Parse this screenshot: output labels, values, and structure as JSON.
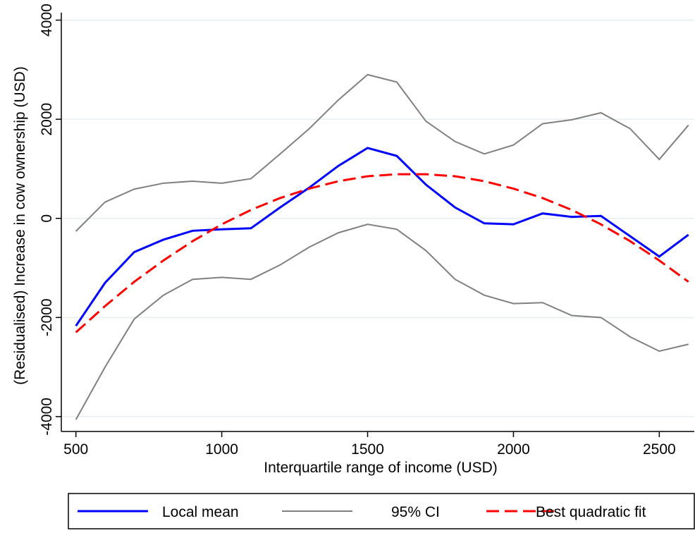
{
  "chart_data": {
    "type": "line",
    "x_label": "Interquartile range of income (USD)",
    "y_label": "(Residualised) Increase in cow ownership (USD)",
    "x": [
      500,
      600,
      700,
      800,
      900,
      1000,
      1100,
      1200,
      1300,
      1400,
      1500,
      1600,
      1700,
      1800,
      1900,
      2000,
      2100,
      2200,
      2300,
      2400,
      2500,
      2600
    ],
    "series": [
      {
        "name": "Local mean",
        "color": "#0000ff",
        "style": "solid",
        "values": [
          -2170,
          -1300,
          -680,
          -430,
          -250,
          -220,
          -200,
          220,
          620,
          1060,
          1420,
          1260,
          680,
          220,
          -100,
          -120,
          100,
          30,
          50,
          -360,
          -770,
          -330
        ]
      },
      {
        "name": "95% CI",
        "color": "#808080",
        "style": "solid",
        "upper": [
          -260,
          330,
          590,
          710,
          750,
          710,
          800,
          1300,
          1810,
          2390,
          2900,
          2750,
          1960,
          1550,
          1300,
          1480,
          1910,
          1990,
          2130,
          1810,
          1190,
          1880
        ],
        "lower": [
          -4060,
          -3000,
          -2030,
          -1550,
          -1230,
          -1190,
          -1230,
          -940,
          -580,
          -290,
          -120,
          -220,
          -650,
          -1230,
          -1550,
          -1720,
          -1700,
          -1960,
          -2000,
          -2390,
          -2680,
          -2540
        ]
      },
      {
        "name": "Best quadratic fit",
        "color": "#ff0000",
        "style": "dashed",
        "values": [
          -2300,
          -1770,
          -1280,
          -850,
          -460,
          -120,
          170,
          410,
          600,
          750,
          850,
          890,
          890,
          850,
          750,
          600,
          410,
          170,
          -120,
          -460,
          -850,
          -1280
        ]
      }
    ],
    "xlim": [
      450,
      2620
    ],
    "ylim": [
      -4300,
      4150
    ],
    "xticks": [
      500,
      1000,
      1500,
      2000,
      2500
    ],
    "yticks": [
      -4000,
      -2000,
      0,
      2000,
      4000
    ],
    "grid": true,
    "legend": "bottom"
  }
}
